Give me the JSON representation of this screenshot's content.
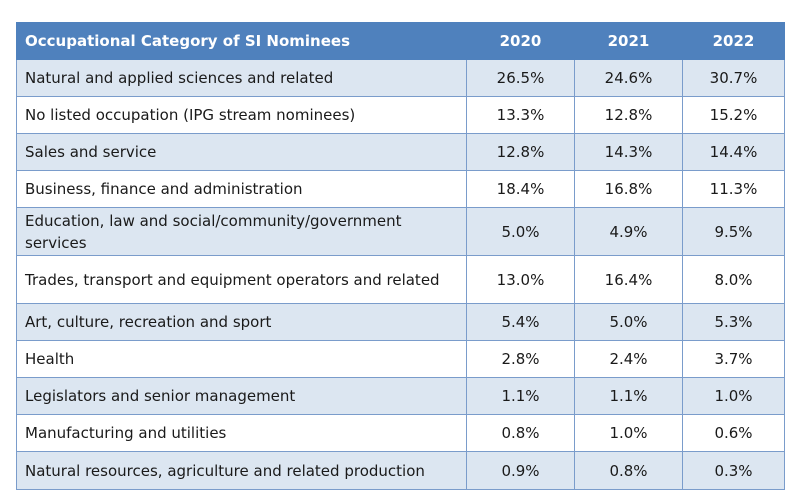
{
  "table": {
    "headers": [
      "Occupational Category of SI Nominees",
      "2020",
      "2021",
      "2022"
    ],
    "rows": [
      {
        "category": "Natural and applied sciences and related",
        "y2020": "26.5%",
        "y2021": "24.6%",
        "y2022": "30.7%"
      },
      {
        "category": "No listed occupation (IPG stream nominees)",
        "y2020": "13.3%",
        "y2021": "12.8%",
        "y2022": "15.2%"
      },
      {
        "category": "Sales and service",
        "y2020": "12.8%",
        "y2021": "14.3%",
        "y2022": "14.4%"
      },
      {
        "category": "Business, finance and administration",
        "y2020": "18.4%",
        "y2021": "16.8%",
        "y2022": "11.3%"
      },
      {
        "category": "Education, law and social/community/government services",
        "y2020": "5.0%",
        "y2021": "4.9%",
        "y2022": "9.5%"
      },
      {
        "category": "Trades, transport and equipment operators and related",
        "y2020": "13.0%",
        "y2021": "16.4%",
        "y2022": "8.0%"
      },
      {
        "category": "Art, culture, recreation and sport",
        "y2020": "5.4%",
        "y2021": "5.0%",
        "y2022": "5.3%"
      },
      {
        "category": "Health",
        "y2020": "2.8%",
        "y2021": "2.4%",
        "y2022": "3.7%"
      },
      {
        "category": "Legislators and senior management",
        "y2020": "1.1%",
        "y2021": "1.1%",
        "y2022": "1.0%"
      },
      {
        "category": "Manufacturing and utilities",
        "y2020": "0.8%",
        "y2021": "1.0%",
        "y2022": "0.6%"
      },
      {
        "category": "Natural resources, agriculture and related production",
        "y2020": "0.9%",
        "y2021": "0.8%",
        "y2022": "0.3%"
      }
    ]
  },
  "colors": {
    "header_bg": "#4f81bd",
    "header_text": "#ffffff",
    "band_row": "#dce6f1",
    "plain_row": "#ffffff",
    "border": "#7a9ccb"
  }
}
